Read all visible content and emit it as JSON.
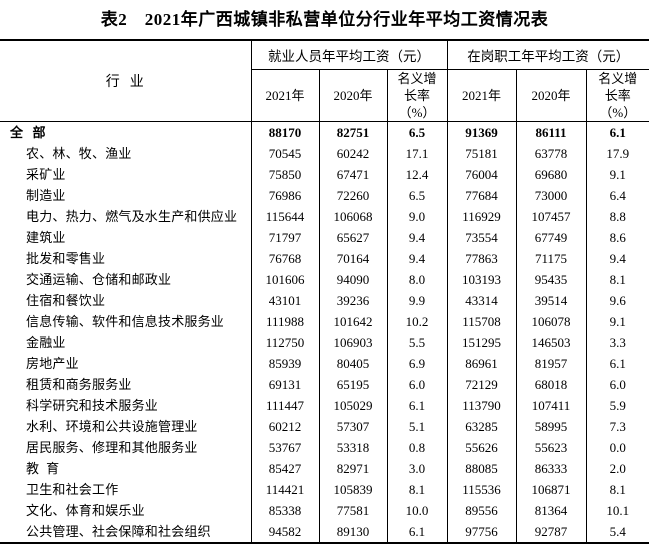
{
  "title": "表2　2021年广西城镇非私营单位分行业年平均工资情况表",
  "table": {
    "industry_header": "行  业",
    "groups": [
      {
        "label": "就业人员年平均工资（元）",
        "columns": [
          "2021年",
          "2020年",
          "名义增长率（%）"
        ]
      },
      {
        "label": "在岗职工年平均工资（元）",
        "columns": [
          "2021年",
          "2020年",
          "名义增长率（%）"
        ]
      }
    ],
    "rows": [
      {
        "industry": "全  部",
        "bold": true,
        "values": [
          "88170",
          "82751",
          "6.5",
          "91369",
          "86111",
          "6.1"
        ]
      },
      {
        "industry": "农、林、牧、渔业",
        "bold": false,
        "values": [
          "70545",
          "60242",
          "17.1",
          "75181",
          "63778",
          "17.9"
        ]
      },
      {
        "industry": "采矿业",
        "bold": false,
        "values": [
          "75850",
          "67471",
          "12.4",
          "76004",
          "69680",
          "9.1"
        ]
      },
      {
        "industry": "制造业",
        "bold": false,
        "values": [
          "76986",
          "72260",
          "6.5",
          "77684",
          "73000",
          "6.4"
        ]
      },
      {
        "industry": "电力、热力、燃气及水生产和供应业",
        "bold": false,
        "values": [
          "115644",
          "106068",
          "9.0",
          "116929",
          "107457",
          "8.8"
        ]
      },
      {
        "industry": "建筑业",
        "bold": false,
        "values": [
          "71797",
          "65627",
          "9.4",
          "73554",
          "67749",
          "8.6"
        ]
      },
      {
        "industry": "批发和零售业",
        "bold": false,
        "values": [
          "76768",
          "70164",
          "9.4",
          "77863",
          "71175",
          "9.4"
        ]
      },
      {
        "industry": "交通运输、仓储和邮政业",
        "bold": false,
        "values": [
          "101606",
          "94090",
          "8.0",
          "103193",
          "95435",
          "8.1"
        ]
      },
      {
        "industry": "住宿和餐饮业",
        "bold": false,
        "values": [
          "43101",
          "39236",
          "9.9",
          "43314",
          "39514",
          "9.6"
        ]
      },
      {
        "industry": "信息传输、软件和信息技术服务业",
        "bold": false,
        "values": [
          "111988",
          "101642",
          "10.2",
          "115708",
          "106078",
          "9.1"
        ]
      },
      {
        "industry": "金融业",
        "bold": false,
        "values": [
          "112750",
          "106903",
          "5.5",
          "151295",
          "146503",
          "3.3"
        ]
      },
      {
        "industry": "房地产业",
        "bold": false,
        "values": [
          "85939",
          "80405",
          "6.9",
          "86961",
          "81957",
          "6.1"
        ]
      },
      {
        "industry": "租赁和商务服务业",
        "bold": false,
        "values": [
          "69131",
          "65195",
          "6.0",
          "72129",
          "68018",
          "6.0"
        ]
      },
      {
        "industry": "科学研究和技术服务业",
        "bold": false,
        "values": [
          "111447",
          "105029",
          "6.1",
          "113790",
          "107411",
          "5.9"
        ]
      },
      {
        "industry": "水利、环境和公共设施管理业",
        "bold": false,
        "values": [
          "60212",
          "57307",
          "5.1",
          "63285",
          "58995",
          "7.3"
        ]
      },
      {
        "industry": "居民服务、修理和其他服务业",
        "bold": false,
        "values": [
          "53767",
          "53318",
          "0.8",
          "55626",
          "55623",
          "0.0"
        ]
      },
      {
        "industry": "教  育",
        "bold": false,
        "values": [
          "85427",
          "82971",
          "3.0",
          "88085",
          "86333",
          "2.0"
        ]
      },
      {
        "industry": "卫生和社会工作",
        "bold": false,
        "values": [
          "114421",
          "105839",
          "8.1",
          "115536",
          "106871",
          "8.1"
        ]
      },
      {
        "industry": "文化、体育和娱乐业",
        "bold": false,
        "values": [
          "85338",
          "77581",
          "10.0",
          "89556",
          "81364",
          "10.1"
        ]
      },
      {
        "industry": "公共管理、社会保障和社会组织",
        "bold": false,
        "values": [
          "94582",
          "89130",
          "6.1",
          "97756",
          "92787",
          "5.4"
        ]
      }
    ]
  }
}
